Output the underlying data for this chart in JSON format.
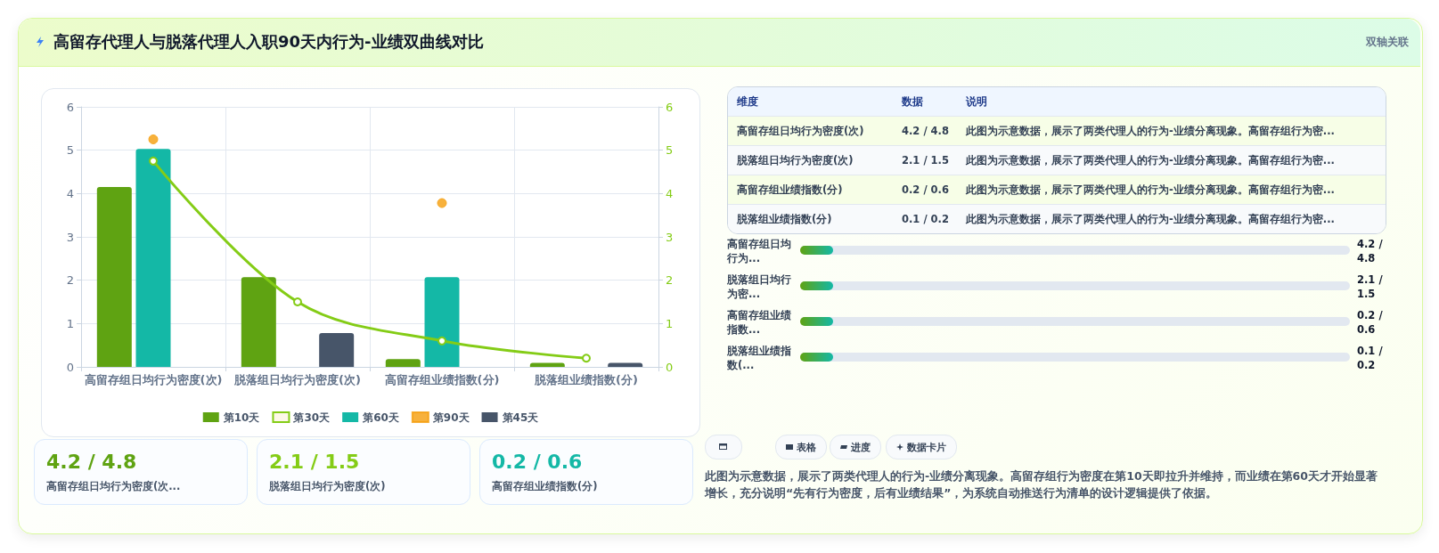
{
  "chart_data": [
    {
      "type": "bar",
      "title": "高留存代理人与脱落代理人入职90天内行为-业绩双曲线对比",
      "categories": [
        "高留存组日均行为密度(次)",
        "脱落组日均行为密度(次)",
        "高留存组业绩指数(分)",
        "脱落组业绩指数(分)"
      ],
      "series": [
        {
          "name": "第10天",
          "color": "#5fa312",
          "values": [
            4.15,
            2.07,
            0.18,
            0.09
          ]
        },
        {
          "name": "第30天",
          "type": "line",
          "axis": "y2",
          "color": "#84cc16",
          "marker": "circle",
          "values": [
            4.75,
            1.5,
            0.6,
            0.2
          ]
        },
        {
          "name": "第60天",
          "color": "#14b8a6",
          "values": [
            5.03,
            null,
            2.07,
            null
          ]
        },
        {
          "name": "第90天",
          "type": "scatter",
          "color": "#f59e0b",
          "marker": "circle",
          "values": [
            5.25,
            null,
            3.78,
            null
          ]
        },
        {
          "name": "第45天",
          "color": "#475569",
          "values": [
            null,
            0.78,
            null,
            0.09
          ]
        }
      ],
      "ylim": [
        0,
        6
      ],
      "yticks": [
        0,
        1,
        2,
        3,
        4,
        5,
        6
      ],
      "y2lim": [
        0,
        6
      ],
      "y2ticks": [
        0,
        1,
        2,
        3,
        4,
        5,
        6
      ],
      "grid": true,
      "legend": "bottom",
      "annotations": [
        "双轴关联",
        "此图为示意数据，展示了两类代理人的行为-业绩分离现象。高留存组行为密度在第10天即拉升并维持，而业绩在第60天才开始显著增长，充分说明“先有行为密度，后有业绩结果”，为系统自动推送行为清单的设计逻辑提供了依据。"
      ]
    },
    {
      "type": "other",
      "annotations": [
        "维度",
        "数据",
        "说明",
        "高留存组日均行为密度(次)",
        "4.2 / 4.8",
        "此图为示意数据，展示了两类代理人的行为-业绩分离现象。高留存组行为密...",
        "脱落组日均行为密度(次)",
        "2.1 / 1.5",
        "此图为示意数据，展示了两类代理人的行为-业绩分离现象。高留存组行为密...",
        "高留存组业绩指数(分)",
        "0.2 / 0.6",
        "此图为示意数据，展示了两类代理人的行为-业绩分离现象。高留存组行为密...",
        "脱落组业绩指数(分)",
        "0.1 / 0.2",
        "此图为示意数据，展示了两类代理人的行为-业绩分离现象。高留存组行为密..."
      ]
    },
    {
      "type": "other",
      "annotations": [
        "高留存组日均行为...",
        "4.2 / 4.8",
        "脱落组日均行为密...",
        "2.1 / 1.5",
        "高留存组业绩指数...",
        "0.2 / 0.6",
        "脱落组业绩指数(...",
        "0.1 / 0.2"
      ]
    },
    {
      "type": "other",
      "colors": [
        "#5fa312",
        "#84cc16",
        "#14b8a6"
      ],
      "annotations": [
        "4.2 / 4.8",
        "高留存组日均行为密度(次...",
        "2.1 / 1.5",
        "脱落组日均行为密度(次)",
        "0.2 / 0.6",
        "高留存组业绩指数(分)"
      ]
    },
    {
      "type": "other",
      "annotations": [
        "表格",
        "进度",
        "数据卡片"
      ]
    }
  ]
}
